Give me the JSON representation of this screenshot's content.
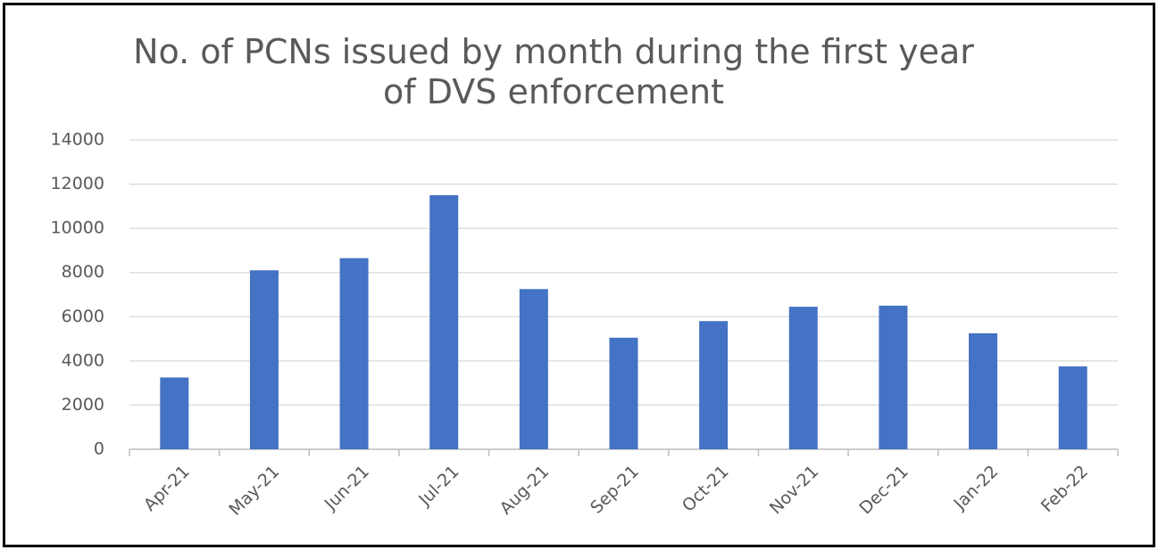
{
  "chart_data": {
    "type": "bar",
    "title": "No. of PCNs issued by month during the first year of DVS enforcement",
    "categories": [
      "Apr-21",
      "May-21",
      "Jun-21",
      "Jul-21",
      "Aug-21",
      "Sep-21",
      "Oct-21",
      "Nov-21",
      "Dec-21",
      "Jan-22",
      "Feb-22"
    ],
    "values": [
      3250,
      8100,
      8650,
      11500,
      7250,
      5050,
      5800,
      6450,
      6500,
      5250,
      3750
    ],
    "color": "#4472c4",
    "ylim": [
      0,
      14000
    ],
    "yticks": [
      0,
      2000,
      4000,
      6000,
      8000,
      10000,
      12000,
      14000
    ],
    "grid": true
  }
}
